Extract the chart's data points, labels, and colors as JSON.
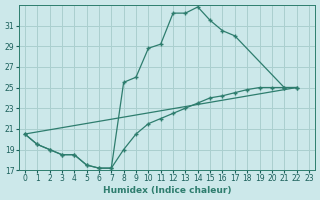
{
  "xlabel": "Humidex (Indice chaleur)",
  "background_color": "#cce8ea",
  "grid_color": "#aacfcf",
  "line_color": "#2e7d6e",
  "xlim": [
    -0.5,
    23.5
  ],
  "ylim": [
    17,
    33
  ],
  "yticks": [
    17,
    19,
    21,
    23,
    25,
    27,
    29,
    31
  ],
  "xticks": [
    0,
    1,
    2,
    3,
    4,
    5,
    6,
    7,
    8,
    9,
    10,
    11,
    12,
    13,
    14,
    15,
    16,
    17,
    18,
    19,
    20,
    21,
    22,
    23
  ],
  "series": [
    {
      "x": [
        0,
        1,
        2,
        3,
        4,
        5,
        6,
        7,
        8,
        9,
        10,
        11,
        12,
        13,
        14,
        15,
        16,
        17,
        21,
        22
      ],
      "y": [
        20.5,
        19.5,
        19.0,
        18.5,
        18.5,
        17.5,
        17.2,
        17.2,
        25.5,
        26.0,
        28.8,
        29.2,
        32.2,
        32.2,
        32.8,
        31.5,
        30.5,
        30.0,
        25.0,
        25.0
      ]
    },
    {
      "x": [
        0,
        1,
        2,
        3,
        4,
        5,
        6,
        7,
        8,
        9,
        10,
        11,
        12,
        13,
        14,
        15,
        16,
        17,
        18,
        19,
        20,
        21,
        22
      ],
      "y": [
        20.5,
        19.5,
        19.0,
        18.5,
        18.5,
        17.5,
        17.2,
        17.2,
        19.0,
        20.5,
        21.5,
        22.0,
        22.5,
        23.0,
        23.5,
        24.0,
        24.2,
        24.5,
        24.8,
        25.0,
        25.0,
        25.0,
        25.0
      ]
    },
    {
      "x": [
        0,
        22
      ],
      "y": [
        20.5,
        25.0
      ]
    }
  ]
}
